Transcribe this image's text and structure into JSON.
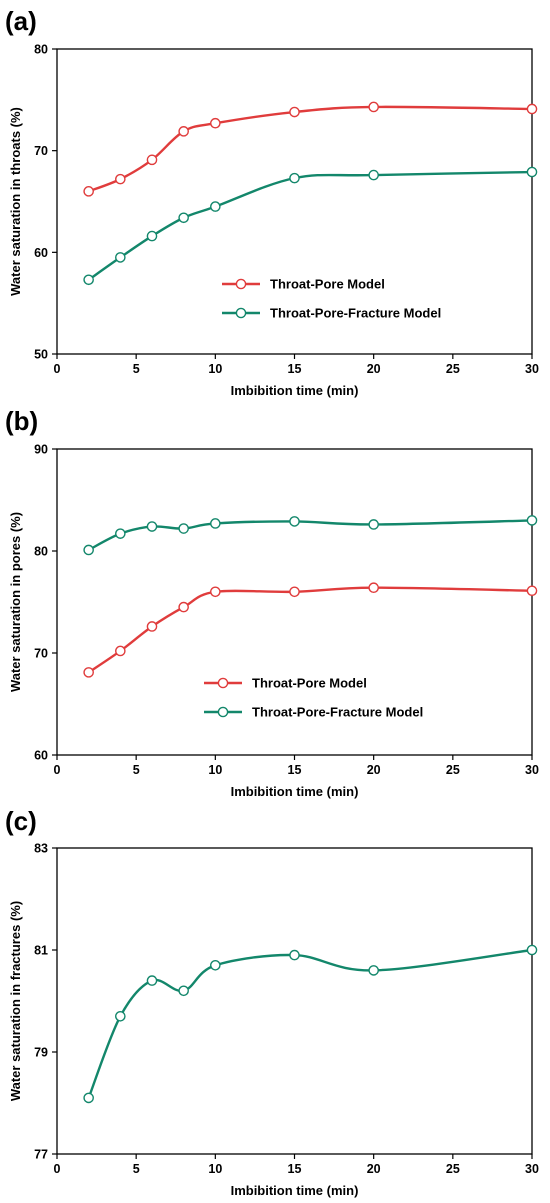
{
  "chart_data": [
    {
      "panel_label": "(a)",
      "type": "line",
      "xlabel": "Imbibition time (min)",
      "ylabel": "Water saturation in throats (%)",
      "xlim": [
        0,
        30
      ],
      "ylim": [
        50,
        80
      ],
      "xticks": [
        0,
        5,
        10,
        15,
        20,
        25,
        30
      ],
      "yticks": [
        50,
        60,
        70,
        80
      ],
      "legend_position": "center-right",
      "series": [
        {
          "name": "Throat-Pore Model",
          "color": "#e03c3c",
          "x": [
            2,
            4,
            6,
            8,
            10,
            15,
            20,
            30
          ],
          "y": [
            66.0,
            67.2,
            69.1,
            71.9,
            72.7,
            73.8,
            74.3,
            74.1
          ]
        },
        {
          "name": "Throat-Pore-Fracture Model",
          "color": "#13876b",
          "x": [
            2,
            4,
            6,
            8,
            10,
            15,
            20,
            30
          ],
          "y": [
            57.3,
            59.5,
            61.6,
            63.4,
            64.5,
            67.3,
            67.6,
            67.9
          ]
        }
      ]
    },
    {
      "panel_label": "(b)",
      "type": "line",
      "xlabel": "Imbibition time (min)",
      "ylabel": "Water saturation in pores (%)",
      "xlim": [
        0,
        30
      ],
      "ylim": [
        60,
        90
      ],
      "xticks": [
        0,
        5,
        10,
        15,
        20,
        25,
        30
      ],
      "yticks": [
        60,
        70,
        80,
        90
      ],
      "legend_position": "center",
      "series": [
        {
          "name": "Throat-Pore Model",
          "color": "#e03c3c",
          "x": [
            2,
            4,
            6,
            8,
            10,
            15,
            20,
            30
          ],
          "y": [
            68.1,
            70.2,
            72.6,
            74.5,
            76.0,
            76.0,
            76.4,
            76.1
          ]
        },
        {
          "name": "Throat-Pore-Fracture Model",
          "color": "#13876b",
          "x": [
            2,
            4,
            6,
            8,
            10,
            15,
            20,
            30
          ],
          "y": [
            80.1,
            81.7,
            82.4,
            82.2,
            82.7,
            82.9,
            82.6,
            83.0
          ]
        }
      ]
    },
    {
      "panel_label": "(c)",
      "type": "line",
      "xlabel": "Imbibition time (min)",
      "ylabel": "Water saturation in fractures (%)",
      "xlim": [
        0,
        30
      ],
      "ylim": [
        77,
        83
      ],
      "xticks": [
        0,
        5,
        10,
        15,
        20,
        25,
        30
      ],
      "yticks": [
        77,
        79,
        81,
        83
      ],
      "series": [
        {
          "color": "#13876b",
          "x": [
            2,
            4,
            6,
            8,
            10,
            15,
            20,
            30
          ],
          "y": [
            78.1,
            79.7,
            80.4,
            80.2,
            80.7,
            80.9,
            80.6,
            81.0
          ]
        }
      ]
    }
  ]
}
